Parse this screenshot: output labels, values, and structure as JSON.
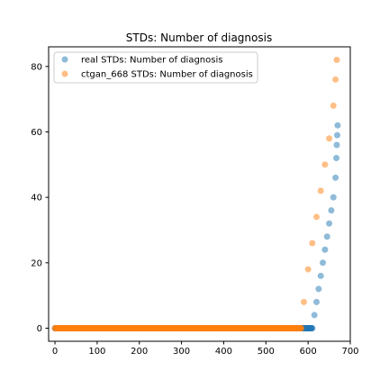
{
  "chart_data": {
    "type": "scatter",
    "title": "STDs: Number of diagnosis",
    "xlabel": "",
    "ylabel": "",
    "xlim": [
      -15,
      700
    ],
    "ylim": [
      -4,
      86
    ],
    "x_ticks": [
      0,
      100,
      200,
      300,
      400,
      500,
      600,
      700
    ],
    "y_ticks": [
      0,
      20,
      40,
      60,
      80
    ],
    "grid": false,
    "legend_position": "top-left",
    "series": [
      {
        "name": "real STDs: Number of diagnosis",
        "color": "#1f77b4",
        "alpha": 0.5,
        "zero_range": [
          0,
          609
        ],
        "ramp": [
          [
            610,
            0
          ],
          [
            615,
            4
          ],
          [
            620,
            8
          ],
          [
            625,
            12
          ],
          [
            630,
            16
          ],
          [
            635,
            20
          ],
          [
            640,
            24
          ],
          [
            645,
            28
          ],
          [
            650,
            32
          ],
          [
            655,
            36
          ],
          [
            660,
            40
          ],
          [
            665,
            46
          ],
          [
            667,
            52
          ],
          [
            668,
            56
          ],
          [
            669,
            59
          ],
          [
            670,
            62
          ]
        ]
      },
      {
        "name": "ctgan_668 STDs: Number of diagnosis",
        "color": "#ff7f0e",
        "alpha": 0.5,
        "zero_range": [
          0,
          583
        ],
        "ramp": [
          [
            584,
            0
          ],
          [
            590,
            8
          ],
          [
            600,
            18
          ],
          [
            610,
            26
          ],
          [
            620,
            34
          ],
          [
            630,
            42
          ],
          [
            640,
            50
          ],
          [
            650,
            58
          ],
          [
            660,
            68
          ],
          [
            665,
            76
          ],
          [
            668,
            82
          ]
        ]
      }
    ]
  }
}
